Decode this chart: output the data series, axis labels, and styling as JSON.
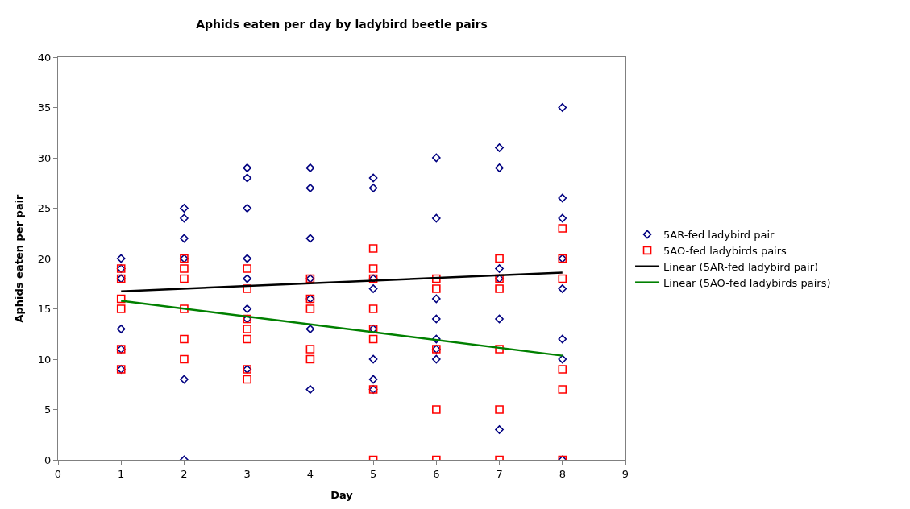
{
  "chart_data": {
    "type": "scatter",
    "title": "Aphids eaten per day by ladybird beetle pairs",
    "xlabel": "Day",
    "ylabel": "Aphids eaten per pair",
    "xlim": [
      0,
      9
    ],
    "xticks": [
      0,
      1,
      2,
      3,
      4,
      5,
      6,
      7,
      8,
      9
    ],
    "ylim": [
      0,
      40
    ],
    "yticks": [
      0,
      5,
      10,
      15,
      20,
      25,
      30,
      35,
      40
    ],
    "legend": "right",
    "series": [
      {
        "name": "5AR-fed ladybird pair",
        "marker": "diamond",
        "color": "#000080",
        "x": [
          1,
          1,
          1,
          1,
          1,
          1,
          2,
          2,
          2,
          2,
          2,
          2,
          3,
          3,
          3,
          3,
          3,
          3,
          3,
          3,
          4,
          4,
          4,
          4,
          4,
          4,
          4,
          5,
          5,
          5,
          5,
          5,
          5,
          5,
          5,
          6,
          6,
          6,
          6,
          6,
          6,
          6,
          7,
          7,
          7,
          7,
          7,
          7,
          8,
          8,
          8,
          8,
          8,
          8,
          8,
          8
        ],
        "values": [
          20,
          19,
          18,
          13,
          11,
          9,
          25,
          24,
          22,
          20,
          8,
          0,
          29,
          28,
          25,
          20,
          18,
          15,
          14,
          9,
          29,
          27,
          22,
          18,
          16,
          13,
          7,
          28,
          27,
          18,
          17,
          13,
          10,
          8,
          7,
          30,
          24,
          16,
          14,
          12,
          11,
          10,
          31,
          29,
          19,
          18,
          14,
          3,
          35,
          26,
          24,
          20,
          17,
          12,
          10,
          0
        ]
      },
      {
        "name": "5AO-fed ladybirds pairs",
        "marker": "square",
        "color": "#ff0000",
        "x": [
          1,
          1,
          1,
          1,
          1,
          1,
          2,
          2,
          2,
          2,
          2,
          2,
          3,
          3,
          3,
          3,
          3,
          3,
          3,
          4,
          4,
          4,
          4,
          4,
          5,
          5,
          5,
          5,
          5,
          5,
          5,
          5,
          6,
          6,
          6,
          6,
          6,
          7,
          7,
          7,
          7,
          7,
          7,
          8,
          8,
          8,
          8,
          8,
          8
        ],
        "values": [
          19,
          18,
          16,
          15,
          11,
          9,
          20,
          19,
          18,
          15,
          12,
          10,
          19,
          17,
          14,
          13,
          12,
          9,
          8,
          18,
          16,
          15,
          11,
          10,
          21,
          19,
          18,
          15,
          13,
          12,
          7,
          0,
          18,
          17,
          11,
          5,
          0,
          20,
          18,
          17,
          11,
          5,
          0,
          23,
          20,
          18,
          9,
          7,
          0
        ]
      },
      {
        "name": "Linear (5AR-fed ladybird pair)",
        "type": "line",
        "line_style": "solid",
        "color": "#000000",
        "x": [
          1,
          8
        ],
        "values": [
          16.75,
          18.6
        ]
      },
      {
        "name": "Linear (5AO-fed ladybirds pairs)",
        "type": "line",
        "line_style": "solid",
        "color": "#008000",
        "x": [
          1,
          8
        ],
        "values": [
          15.8,
          10.35
        ]
      }
    ]
  }
}
